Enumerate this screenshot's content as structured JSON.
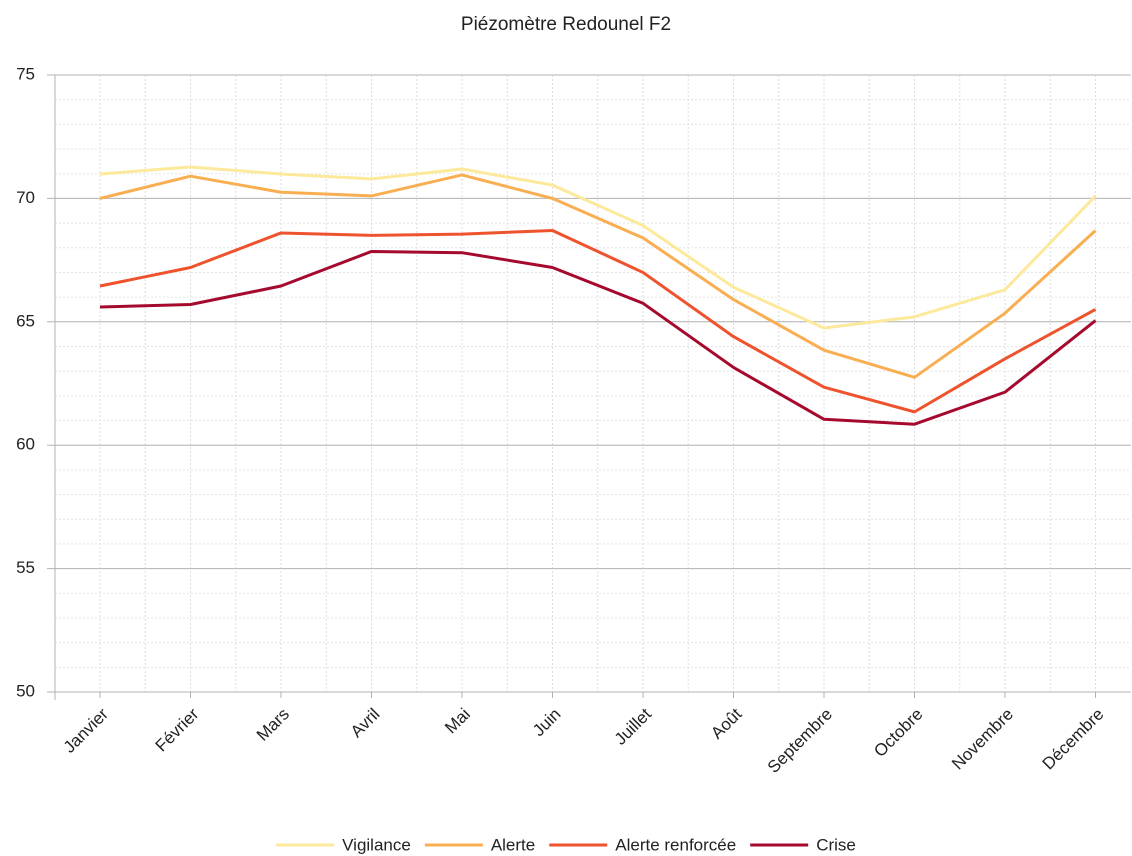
{
  "chart_data": {
    "type": "line",
    "title": "Piézomètre Redounel F2",
    "categories": [
      "Janvier",
      "Février",
      "Mars",
      "Avril",
      "Mai",
      "Juin",
      "Juillet",
      "Août",
      "Septembre",
      "Octobre",
      "Novembre",
      "Décembre"
    ],
    "series": [
      {
        "name": "Vigilance",
        "color": "#fde99c",
        "values": [
          70.99,
          71.27,
          70.99,
          70.79,
          71.19,
          70.54,
          68.9,
          66.4,
          64.75,
          65.2,
          66.3,
          70.1
        ]
      },
      {
        "name": "Alerte",
        "color": "#f9ae52",
        "values": [
          70.0,
          70.9,
          70.25,
          70.1,
          70.95,
          70.0,
          68.4,
          65.9,
          63.85,
          62.75,
          65.35,
          68.7
        ]
      },
      {
        "name": "Alerte renforcée",
        "color": "#ef532e",
        "values": [
          66.45,
          67.2,
          68.6,
          68.5,
          68.55,
          68.7,
          67.0,
          64.4,
          62.35,
          61.35,
          63.5,
          65.5
        ]
      },
      {
        "name": "Crise",
        "color": "#a50a2e",
        "values": [
          65.6,
          65.7,
          66.45,
          67.85,
          67.8,
          67.2,
          65.75,
          63.15,
          61.05,
          60.85,
          62.15,
          65.05
        ]
      }
    ],
    "ylim": [
      50,
      75
    ],
    "yticks": [
      50,
      55,
      60,
      65,
      70,
      75
    ],
    "grid": true,
    "legend": "bottom"
  }
}
